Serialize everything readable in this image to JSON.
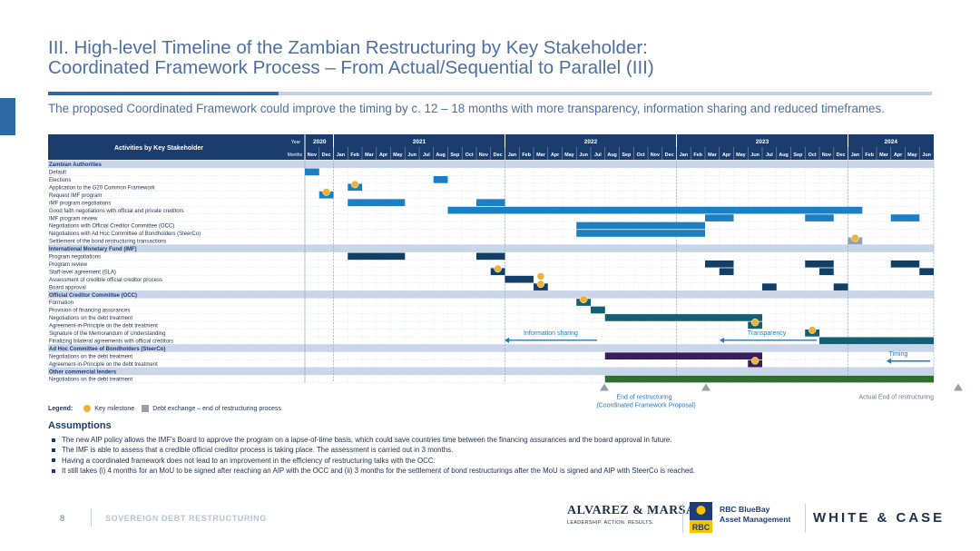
{
  "title_line1": "III. High-level Timeline of the Zambian Restructuring by Key Stakeholder:",
  "title_line2": "Coordinated Framework Process – From Actual/Sequential to Parallel (III)",
  "subtitle": "The proposed Coordinated Framework could improve the timing by c. 12 – 18 months with more transparency, information sharing and reduced timeframes.",
  "header": {
    "activities": "Activities by Key Stakeholder",
    "year_label": "Year",
    "months_label": "Months",
    "years": [
      {
        "label": "2020",
        "span": 2
      },
      {
        "label": "2021",
        "span": 12
      },
      {
        "label": "2022",
        "span": 12
      },
      {
        "label": "2023",
        "span": 12
      },
      {
        "label": "2024",
        "span": 6
      }
    ],
    "months": [
      "Nov",
      "Dec",
      "Jan",
      "Feb",
      "Mar",
      "Apr",
      "May",
      "Jun",
      "Jul",
      "Aug",
      "Sep",
      "Oct",
      "Nov",
      "Dec",
      "Jan",
      "Feb",
      "Mar",
      "Apr",
      "May",
      "Jun",
      "Jul",
      "Aug",
      "Sep",
      "Oct",
      "Nov",
      "Dec",
      "Jan",
      "Feb",
      "Mar",
      "Apr",
      "May",
      "Jun",
      "Jul",
      "Aug",
      "Sep",
      "Oct",
      "Nov",
      "Dec",
      "Jan",
      "Feb",
      "Mar",
      "Apr",
      "May",
      "Jun"
    ]
  },
  "rows": [
    {
      "type": "section",
      "label": "Zambian Authorities"
    },
    {
      "type": "task",
      "label": "Default",
      "bars": [
        {
          "s": 0,
          "e": 1,
          "c": "blue"
        }
      ]
    },
    {
      "type": "task",
      "label": "Elections",
      "bars": [
        {
          "s": 9,
          "e": 10,
          "c": "blue"
        }
      ]
    },
    {
      "type": "task",
      "label": "Application to the G20 Common Framework",
      "bars": [
        {
          "s": 3,
          "e": 4,
          "c": "blue"
        }
      ],
      "milestones": [
        3.5
      ]
    },
    {
      "type": "task",
      "label": "Request IMF program",
      "bars": [
        {
          "s": 1,
          "e": 2,
          "c": "blue"
        }
      ],
      "milestones": [
        1.5
      ]
    },
    {
      "type": "task",
      "label": "IMF program negotiations",
      "bars": [
        {
          "s": 3,
          "e": 7,
          "c": "blue"
        },
        {
          "s": 12,
          "e": 14,
          "c": "blue"
        }
      ]
    },
    {
      "type": "task",
      "label": "Good faith negotiations with official and private creditors",
      "bars": [
        {
          "s": 10,
          "e": 14,
          "c": "blue"
        },
        {
          "s": 14,
          "e": 39,
          "c": "blue"
        }
      ]
    },
    {
      "type": "task",
      "label": "IMF program review",
      "bars": [
        {
          "s": 28,
          "e": 30,
          "c": "blue"
        },
        {
          "s": 35,
          "e": 37,
          "c": "blue"
        },
        {
          "s": 41,
          "e": 43,
          "c": "blue"
        }
      ]
    },
    {
      "type": "task",
      "label": "Negotiations with Official Creditor Committee (OCC)",
      "bars": [
        {
          "s": 19,
          "e": 28,
          "c": "blue"
        }
      ]
    },
    {
      "type": "task",
      "label": "Negotiations with Ad Hoc Committee of Bondholders (SteerCo)",
      "bars": [
        {
          "s": 19,
          "e": 28,
          "c": "blue"
        }
      ]
    },
    {
      "type": "task",
      "label": "Settlement of the bond restructuring transactions",
      "bars": [
        {
          "s": 38,
          "e": 39,
          "c": "gray"
        }
      ],
      "milestones": [
        38.5
      ]
    },
    {
      "type": "section",
      "label": "International Monetary Fund (IMF)"
    },
    {
      "type": "task",
      "label": "Program negotiations",
      "bars": [
        {
          "s": 3,
          "e": 7,
          "c": "navy"
        },
        {
          "s": 12,
          "e": 14,
          "c": "navy"
        }
      ]
    },
    {
      "type": "task",
      "label": "Program review",
      "bars": [
        {
          "s": 28,
          "e": 30,
          "c": "navy"
        },
        {
          "s": 35,
          "e": 37,
          "c": "navy"
        },
        {
          "s": 41,
          "e": 43,
          "c": "navy"
        }
      ]
    },
    {
      "type": "task",
      "label": "Staff-level agreement (SLA)",
      "bars": [
        {
          "s": 13,
          "e": 14,
          "c": "navy"
        },
        {
          "s": 29,
          "e": 30,
          "c": "navy"
        },
        {
          "s": 36,
          "e": 37,
          "c": "navy"
        },
        {
          "s": 43,
          "e": 44,
          "c": "navy"
        }
      ],
      "milestones": [
        13.5
      ]
    },
    {
      "type": "task",
      "label": "Assessment of credible official creditor process",
      "bars": [
        {
          "s": 14,
          "e": 16,
          "c": "navy"
        }
      ],
      "milestones": [
        16.5
      ]
    },
    {
      "type": "task",
      "label": "Board approval",
      "bars": [
        {
          "s": 16,
          "e": 17,
          "c": "navy"
        },
        {
          "s": 32,
          "e": 33,
          "c": "navy"
        },
        {
          "s": 37,
          "e": 38,
          "c": "navy"
        }
      ],
      "milestones": [
        16.5
      ]
    },
    {
      "type": "section",
      "label": "Official Creditor Committee (OCC)"
    },
    {
      "type": "task",
      "label": "Formation",
      "bars": [
        {
          "s": 19,
          "e": 20,
          "c": "teal"
        }
      ],
      "milestones": [
        19.5
      ]
    },
    {
      "type": "task",
      "label": "Provision of financing assurances",
      "bars": [
        {
          "s": 20,
          "e": 21,
          "c": "teal"
        }
      ]
    },
    {
      "type": "task",
      "label": "Negotiations on the debt treatment",
      "bars": [
        {
          "s": 21,
          "e": 32,
          "c": "teal"
        }
      ]
    },
    {
      "type": "task",
      "label": "Agreement-in-Principle on the debt treatment",
      "bars": [
        {
          "s": 31,
          "e": 32,
          "c": "teal"
        }
      ],
      "milestones": [
        31.5
      ]
    },
    {
      "type": "task",
      "label": "Signature of the Memorandum of Understanding",
      "bars": [
        {
          "s": 35,
          "e": 36,
          "c": "teal"
        }
      ],
      "milestones": [
        35.5
      ]
    },
    {
      "type": "task",
      "label": "Finalizing bilateral agreements with official creditors",
      "bars": [
        {
          "s": 36,
          "e": 44,
          "c": "teal"
        }
      ]
    },
    {
      "type": "section",
      "label": "Ad Hoc Committee of Bondholders (SteerCo)"
    },
    {
      "type": "task",
      "label": "Negotiations on the debt treatment",
      "bars": [
        {
          "s": 21,
          "e": 32,
          "c": "purple"
        }
      ]
    },
    {
      "type": "task",
      "label": "Agreement-in-Principle on the debt treatment",
      "bars": [
        {
          "s": 31,
          "e": 32,
          "c": "purple"
        }
      ],
      "milestones": [
        31.5
      ]
    },
    {
      "type": "section",
      "label": "Other commercial lenders"
    },
    {
      "type": "task",
      "label": "Negotiations on the debt treatment",
      "bars": [
        {
          "s": 21,
          "e": 44,
          "c": "green"
        }
      ]
    }
  ],
  "colors": {
    "blue": "#1b7fc4",
    "navy": "#123f66",
    "teal": "#145f72",
    "purple": "#3a1c5c",
    "green": "#2d6e2d",
    "gray": "#9aa0a8",
    "milestone": "#f0b234",
    "header": "#1b3d6e",
    "section": "#c9d6ea",
    "annotation": "#1f78c3"
  },
  "annotations": {
    "info_sharing": "Information sharing",
    "transparency": "Transparency",
    "timing": "Timing"
  },
  "markers": {
    "end_line1": "End of restructuring",
    "end_line2": "(Coordinated Framework Proposal)",
    "actual_end": "Actual End of restructuring"
  },
  "legend": {
    "label": "Legend:",
    "milestone": "Key milestone",
    "debt_exchange": "Debt exchange – end of restructuring process"
  },
  "assumptions_title": "Assumptions",
  "assumptions": [
    "The new AIP policy allows the IMF's Board to approve the program on a lapse-of-time basis, which could save countries time between the financing assurances and the board approval in future.",
    "The IMF is able to assess that a credible official creditor process is taking place. The assessment is carried out in 3 months.",
    "Having a coordinated framework does not lead to an improvement in the efficiency of restructuring talks with the OCC.",
    "It still takes (i) 4 months for an MoU to be signed after reaching an AIP with the OCC and (ii) 3 months for the settlement of bond restructurings after the MoU is signed and AIP with SteerCo is reached."
  ],
  "footer": {
    "page": "8",
    "label": "SOVEREIGN DEBT RESTRUCTURING"
  },
  "logos": {
    "am_name": "ALVAREZ & MARSAL",
    "am_tagline": "LEADERSHIP. ACTION. RESULTS.",
    "rbc_shield": "RBC",
    "rbc_line1": "RBC BlueBay",
    "rbc_line2": "Asset Management",
    "wc": "WHITE & CASE"
  }
}
